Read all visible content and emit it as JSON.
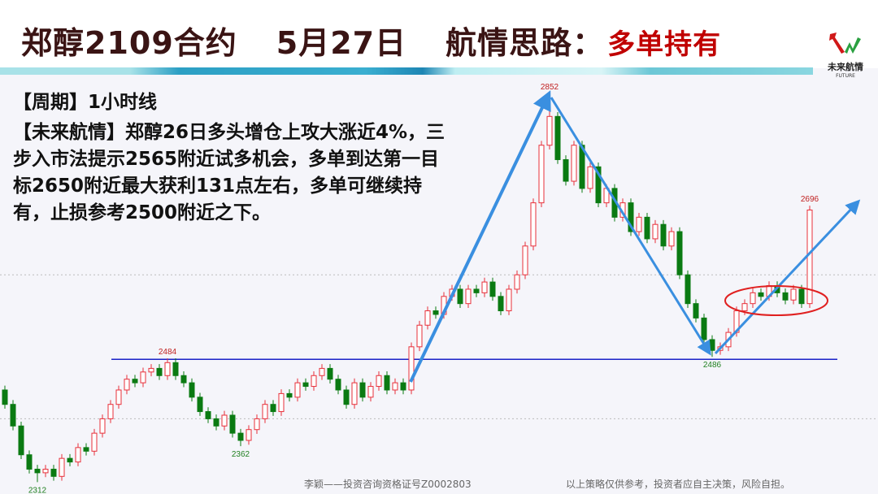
{
  "header": {
    "title_contract": "郑醇2109合约",
    "title_date": "5月27日",
    "title_label": "航情思路：",
    "title_view": "多单持有",
    "logo_name": "未来航情",
    "logo_en": "FUTURE"
  },
  "commentary": {
    "period": "【周期】1小时线",
    "body": "【未来航情】郑醇26日多头增仓上攻大涨近4%，三步入市法提示2565附近试多机会，多单到达第一目标2650附近最大获利131点左右，多单可继续持有，止损参考2500附近之下。"
  },
  "footer": {
    "author": "李颖——投资咨询资格证号Z0002803",
    "disclaimer": "以上策略仅供参考，投资者应自主决策，风险自担。"
  },
  "colors": {
    "up": "#e8303a",
    "down": "#0a7a12",
    "trend_arrow": "#3a8fe0",
    "support_line": "#1a22c8",
    "highlight_ellipse": "#e02020",
    "title": "#3a1414",
    "accent": "#c00000"
  },
  "chart_data": {
    "type": "candlestick",
    "timeframe": "1小时线",
    "closes": [
      2420,
      2390,
      2350,
      2330,
      2325,
      2330,
      2320,
      2345,
      2340,
      2360,
      2355,
      2380,
      2400,
      2420,
      2440,
      2455,
      2450,
      2465,
      2470,
      2460,
      2478,
      2460,
      2450,
      2430,
      2410,
      2400,
      2390,
      2405,
      2380,
      2370,
      2385,
      2400,
      2420,
      2410,
      2435,
      2430,
      2450,
      2445,
      2460,
      2470,
      2455,
      2440,
      2420,
      2450,
      2430,
      2445,
      2460,
      2440,
      2450,
      2440,
      2500,
      2530,
      2550,
      2545,
      2570,
      2580,
      2560,
      2580,
      2575,
      2590,
      2570,
      2550,
      2580,
      2600,
      2640,
      2700,
      2780,
      2820,
      2760,
      2730,
      2780,
      2720,
      2750,
      2700,
      2720,
      2680,
      2700,
      2660,
      2680,
      2650,
      2670,
      2640,
      2660,
      2600,
      2560,
      2540,
      2510,
      2495,
      2500,
      2520,
      2550,
      2560,
      2575,
      2570,
      2585,
      2575,
      2565,
      2580,
      2560,
      2690
    ],
    "labeled_extremes": [
      {
        "label": "2312",
        "type": "low",
        "index": 4,
        "price": 2312
      },
      {
        "label": "2484",
        "type": "high",
        "index": 20,
        "price": 2484
      },
      {
        "label": "2362",
        "type": "low",
        "index": 29,
        "price": 2362
      },
      {
        "label": "2852",
        "type": "high",
        "index": 67,
        "price": 2852
      },
      {
        "label": "2486",
        "type": "low",
        "index": 87,
        "price": 2486
      },
      {
        "label": "2696",
        "type": "high",
        "index": 99,
        "price": 2696
      }
    ],
    "support_level": 2486,
    "dashed_gridlines": [
      2600,
      2400
    ],
    "axis_labels": false
  }
}
